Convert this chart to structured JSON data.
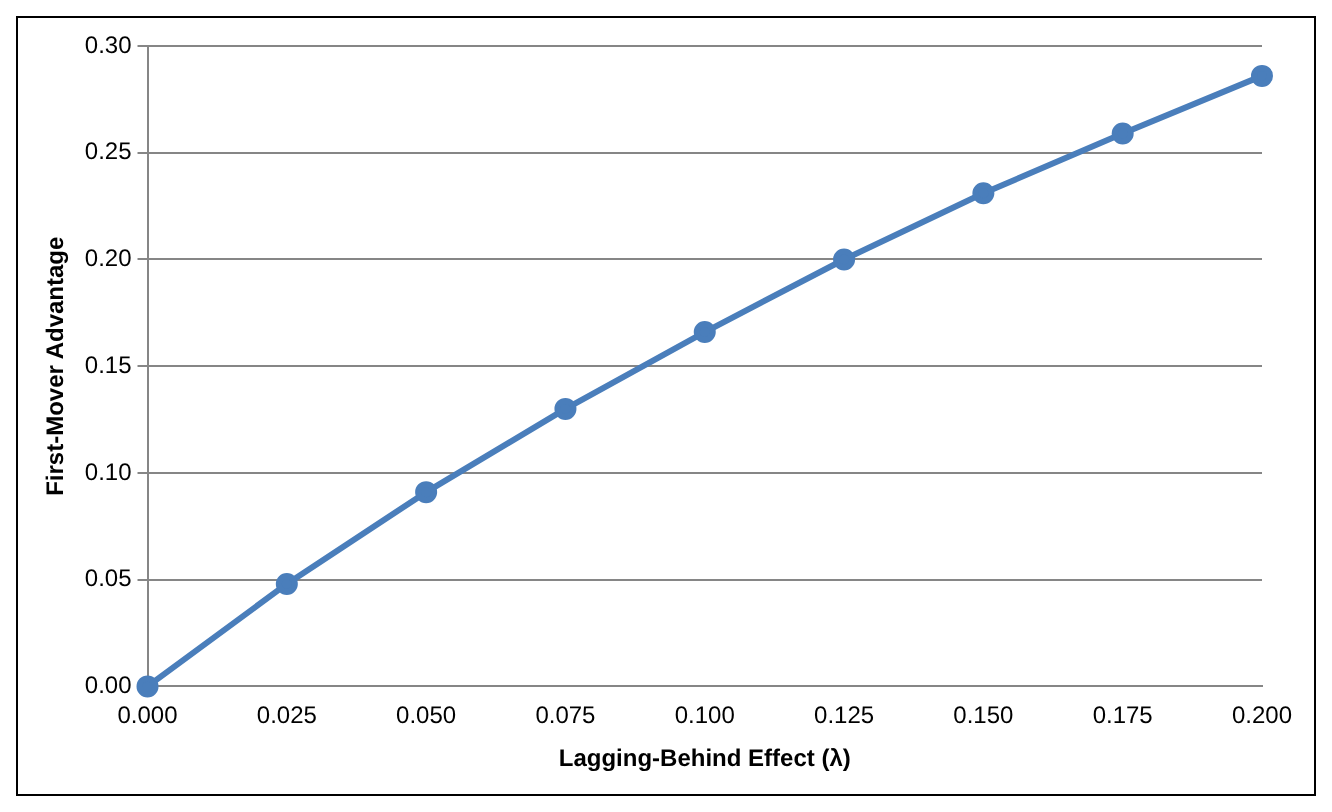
{
  "chart_data": {
    "type": "line",
    "xlabel": "Lagging-Behind Effect (λ)",
    "ylabel": "First-Mover Advantage",
    "x": [
      0,
      0.025,
      0.05,
      0.075,
      0.1,
      0.125,
      0.15,
      0.175,
      0.2
    ],
    "series": [
      {
        "color": "#4a7ebb",
        "values": [
          0,
          0.048,
          0.091,
          0.13,
          0.166,
          0.2,
          0.231,
          0.259,
          0.286
        ]
      }
    ],
    "xlim": [
      0,
      0.2
    ],
    "xticks": [
      {
        "value": 0,
        "label": "0.000"
      },
      {
        "value": 0.025,
        "label": "0.025"
      },
      {
        "value": 0.05,
        "label": "0.050"
      },
      {
        "value": 0.075,
        "label": "0.075"
      },
      {
        "value": 0.1,
        "label": "0.100"
      },
      {
        "value": 0.125,
        "label": "0.125"
      },
      {
        "value": 0.15,
        "label": "0.150"
      },
      {
        "value": 0.175,
        "label": "0.175"
      },
      {
        "value": 0.2,
        "label": "0.200"
      }
    ],
    "ylim": [
      0,
      0.3
    ],
    "yticks": [
      {
        "value": 0,
        "label": "0.00"
      },
      {
        "value": 0.05,
        "label": "0.05"
      },
      {
        "value": 0.1,
        "label": "0.10"
      },
      {
        "value": 0.15,
        "label": "0.15"
      },
      {
        "value": 0.2,
        "label": "0.20"
      },
      {
        "value": 0.25,
        "label": "0.25"
      },
      {
        "value": 0.3,
        "label": "0.30"
      }
    ],
    "grid": "y",
    "legend": false,
    "marker": "circle",
    "line_style": "solid"
  }
}
